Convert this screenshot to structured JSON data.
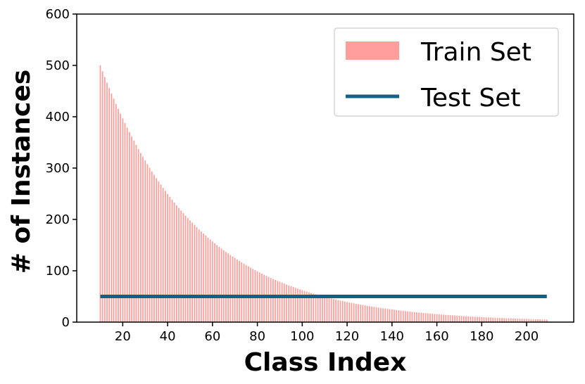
{
  "chart_data": {
    "type": "bar",
    "xlabel": "Class Index",
    "ylabel": "# of Instances",
    "xlim": [
      -0.5,
      221
    ],
    "ylim": [
      0,
      600
    ],
    "xticks": [
      20,
      40,
      60,
      80,
      100,
      120,
      140,
      160,
      180,
      200
    ],
    "yticks": [
      0,
      100,
      200,
      300,
      400,
      500,
      600
    ],
    "legend_position": "top-right",
    "grid": false,
    "train_distribution": {
      "name": "Train Set",
      "color": "#ff9e9b",
      "class_start": 10,
      "class_end": 209,
      "max_instances": 500,
      "min_instances": 5,
      "profile": "exponential-decay"
    },
    "test_line": {
      "name": "Test Set",
      "color": "#0f6189",
      "x": [
        10,
        209
      ],
      "value": 50
    }
  }
}
